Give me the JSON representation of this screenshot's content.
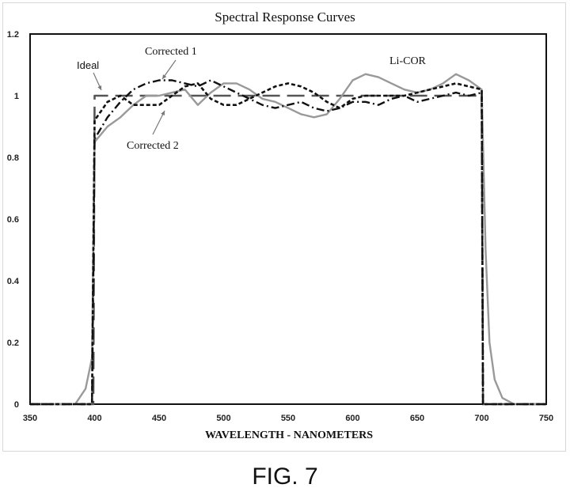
{
  "chart_data": {
    "type": "line",
    "title": "Spectral Response Curves",
    "xlabel": "WAVELENGTH - NANOMETERS",
    "ylabel": "",
    "xlim": [
      350,
      750
    ],
    "ylim": [
      0,
      1.2
    ],
    "x_ticks": [
      "350",
      "400",
      "450",
      "500",
      "550",
      "600",
      "650",
      "700",
      "750"
    ],
    "y_ticks": [
      "0",
      "0.2",
      "0.4",
      "0.6",
      "0.8",
      "1",
      "1.2"
    ],
    "grid": false,
    "series": [
      {
        "name": "Ideal",
        "style": "long-dash",
        "color": "#555555",
        "x": [
          350,
          399,
          400,
          700,
          701,
          750
        ],
        "y": [
          0,
          0,
          1.0,
          1.0,
          0,
          0
        ]
      },
      {
        "name": "Li-COR",
        "style": "solid",
        "color": "#999999",
        "x": [
          350,
          385,
          393,
          398,
          400,
          410,
          420,
          430,
          440,
          450,
          460,
          470,
          480,
          490,
          500,
          510,
          520,
          530,
          540,
          550,
          560,
          570,
          580,
          590,
          600,
          610,
          620,
          630,
          640,
          650,
          660,
          670,
          680,
          690,
          700,
          703,
          706,
          710,
          716,
          725,
          750
        ],
        "y": [
          0,
          0,
          0.05,
          0.15,
          0.85,
          0.9,
          0.93,
          0.97,
          1.0,
          1.0,
          1.01,
          1.02,
          0.97,
          1.01,
          1.04,
          1.04,
          1.02,
          0.99,
          0.98,
          0.96,
          0.94,
          0.93,
          0.94,
          0.99,
          1.05,
          1.07,
          1.06,
          1.04,
          1.02,
          1.01,
          1.02,
          1.04,
          1.07,
          1.05,
          1.02,
          0.5,
          0.2,
          0.08,
          0.02,
          0,
          0
        ]
      },
      {
        "name": "Corrected 1",
        "style": "dash-dot",
        "color": "#111111",
        "x": [
          350,
          398,
          399,
          400,
          410,
          420,
          430,
          440,
          450,
          460,
          470,
          480,
          490,
          500,
          510,
          520,
          530,
          540,
          550,
          560,
          570,
          580,
          590,
          600,
          610,
          620,
          630,
          640,
          650,
          660,
          670,
          680,
          690,
          700,
          701,
          750
        ],
        "y": [
          0,
          0,
          0.4,
          0.86,
          0.93,
          0.98,
          1.02,
          1.04,
          1.05,
          1.05,
          1.04,
          1.03,
          1.05,
          1.03,
          1.01,
          0.99,
          0.97,
          0.96,
          0.97,
          0.98,
          0.96,
          0.95,
          0.96,
          0.98,
          0.98,
          0.97,
          0.99,
          1.0,
          0.98,
          0.99,
          1.0,
          1.01,
          1.0,
          1.01,
          0,
          0
        ]
      },
      {
        "name": "Corrected 2",
        "style": "short-dash",
        "color": "#111111",
        "x": [
          350,
          398,
          399,
          400,
          410,
          420,
          430,
          440,
          450,
          460,
          470,
          480,
          490,
          500,
          510,
          520,
          530,
          540,
          550,
          560,
          570,
          580,
          590,
          600,
          610,
          620,
          630,
          640,
          650,
          660,
          670,
          680,
          690,
          700,
          701,
          750
        ],
        "y": [
          0,
          0,
          0.5,
          0.92,
          0.98,
          1.0,
          0.97,
          0.97,
          0.97,
          1.0,
          1.03,
          1.04,
          0.99,
          0.97,
          0.97,
          0.99,
          1.01,
          1.03,
          1.04,
          1.03,
          1.01,
          0.98,
          0.96,
          0.99,
          1.0,
          1.0,
          1.0,
          1.0,
          1.01,
          1.02,
          1.03,
          1.04,
          1.03,
          1.02,
          0,
          0
        ]
      }
    ],
    "annotations": [
      {
        "text": "Ideal",
        "series": "Ideal"
      },
      {
        "text": "Corrected 1",
        "series": "Corrected 1"
      },
      {
        "text": "Corrected 2",
        "series": "Corrected 2"
      },
      {
        "text": "Li-COR",
        "series": "Li-COR"
      }
    ]
  },
  "caption": "FIG. 7"
}
